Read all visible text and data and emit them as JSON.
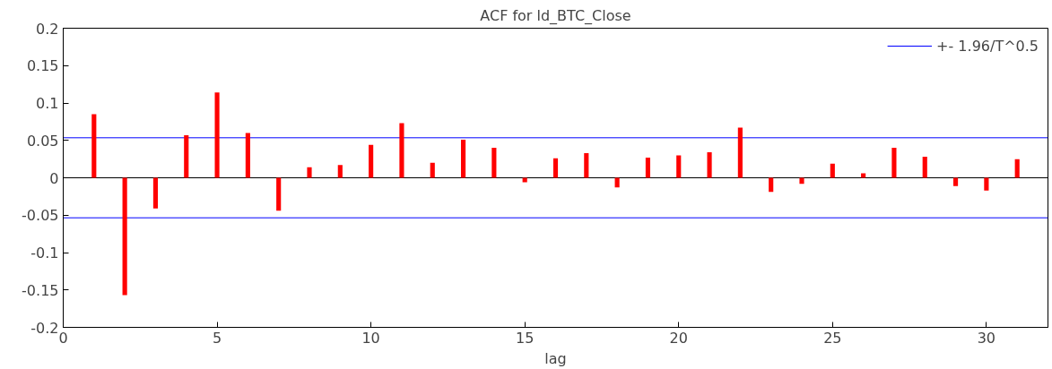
{
  "chart_data": {
    "type": "bar",
    "title": "ACF for ld_BTC_Close",
    "xlabel": "lag",
    "x": [
      1,
      2,
      3,
      4,
      5,
      6,
      7,
      8,
      9,
      10,
      11,
      12,
      13,
      14,
      15,
      16,
      17,
      18,
      19,
      20,
      21,
      22,
      23,
      24,
      25,
      26,
      27,
      28,
      29,
      30,
      31
    ],
    "series": [
      {
        "color": "#ff0000",
        "values": [
          0.085,
          -0.157,
          -0.041,
          0.057,
          0.114,
          0.06,
          -0.044,
          0.014,
          0.017,
          0.044,
          0.073,
          0.02,
          0.051,
          0.04,
          -0.006,
          0.026,
          0.033,
          -0.013,
          0.027,
          0.03,
          0.034,
          0.067,
          -0.019,
          -0.008,
          0.019,
          0.006,
          0.04,
          0.028,
          -0.011,
          -0.017,
          0.025
        ]
      }
    ],
    "xlim": [
      0,
      32
    ],
    "xticks": [
      0,
      5,
      10,
      15,
      20,
      25,
      30
    ],
    "ylim": [
      -0.2,
      0.2
    ],
    "yticks": [
      -0.2,
      -0.15,
      -0.1,
      -0.05,
      0,
      0.05,
      0.1,
      0.15,
      0.2
    ],
    "ref_lines": [
      {
        "axis": "y",
        "value": 0.0535,
        "label": "+- 1.96/T^0.5",
        "color": "#0000ff"
      },
      {
        "axis": "y",
        "value": -0.0535,
        "label": null,
        "color": "#0000ff"
      },
      {
        "axis": "y",
        "value": 0,
        "label": null,
        "color": "#000000"
      }
    ],
    "grid": false,
    "legend": "top right"
  }
}
